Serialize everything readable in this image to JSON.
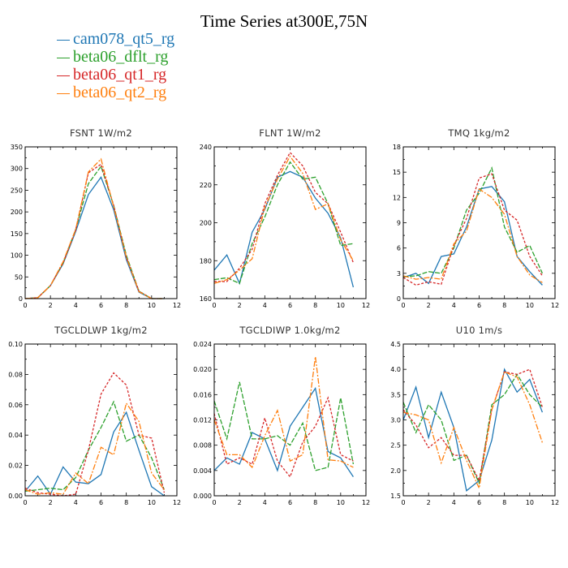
{
  "title": "Time Series at300E,75N",
  "colors": {
    "cam078_qt5_rg": "#1f77b4",
    "beta06_dflt_rg": "#2ca02c",
    "beta06_qt1_rg": "#d62728",
    "beta06_qt2_rg": "#ff7f0e"
  },
  "legend": [
    {
      "label": "cam078_qt5_rg",
      "color": "#1f77b4"
    },
    {
      "label": "beta06_dflt_rg",
      "color": "#2ca02c"
    },
    {
      "label": "beta06_qt1_rg",
      "color": "#d62728"
    },
    {
      "label": "beta06_qt2_rg",
      "color": "#ff7f0e"
    }
  ],
  "chart_data": [
    {
      "type": "line",
      "title": "FSNT   1W/m2",
      "x": [
        0,
        1,
        2,
        3,
        4,
        5,
        6,
        7,
        8,
        9,
        10,
        11
      ],
      "xlim": [
        0,
        12
      ],
      "xticks": [
        "0",
        "2",
        "4",
        "6",
        "8",
        "10",
        "12"
      ],
      "ylim": [
        0,
        350
      ],
      "yticks": [
        "0",
        "50",
        "100",
        "150",
        "200",
        "250",
        "300",
        "350"
      ],
      "series": [
        {
          "name": "cam078_qt5_rg",
          "values": [
            0,
            2,
            30,
            80,
            155,
            240,
            280,
            205,
            90,
            15,
            0,
            0
          ]
        },
        {
          "name": "beta06_dflt_rg",
          "values": [
            0,
            2,
            30,
            82,
            160,
            265,
            305,
            215,
            100,
            17,
            0,
            0
          ]
        },
        {
          "name": "beta06_qt1_rg",
          "values": [
            0,
            2,
            30,
            82,
            158,
            290,
            310,
            215,
            95,
            17,
            0,
            0
          ]
        },
        {
          "name": "beta06_qt2_rg",
          "values": [
            0,
            2,
            30,
            85,
            160,
            292,
            322,
            212,
            96,
            16,
            0,
            0
          ]
        }
      ]
    },
    {
      "type": "line",
      "title": "FLNT   1W/m2",
      "x": [
        0,
        1,
        2,
        3,
        4,
        5,
        6,
        7,
        8,
        9,
        10,
        11
      ],
      "xlim": [
        0,
        12
      ],
      "xticks": [
        "0",
        "2",
        "4",
        "6",
        "8",
        "10",
        "12"
      ],
      "ylim": [
        160,
        240
      ],
      "yticks": [
        "160",
        "180",
        "200",
        "220",
        "240"
      ],
      "series": [
        {
          "name": "cam078_qt5_rg",
          "values": [
            175,
            183,
            168,
            195,
            207,
            224,
            227,
            224,
            213,
            205,
            192,
            166
          ]
        },
        {
          "name": "beta06_dflt_rg",
          "values": [
            170,
            171,
            168,
            189,
            203,
            220,
            232,
            223,
            224,
            210,
            188,
            189
          ]
        },
        {
          "name": "beta06_qt1_rg",
          "values": [
            169,
            169,
            176,
            186,
            210,
            225,
            237,
            230,
            216,
            210,
            195,
            179
          ]
        },
        {
          "name": "beta06_qt2_rg",
          "values": [
            168,
            170,
            175,
            181,
            208,
            223,
            235,
            226,
            207,
            210,
            191,
            180
          ]
        }
      ]
    },
    {
      "type": "line",
      "title": "TMQ   1kg/m2",
      "x": [
        0,
        1,
        2,
        3,
        4,
        5,
        6,
        7,
        8,
        9,
        10,
        11
      ],
      "xlim": [
        0,
        12
      ],
      "xticks": [
        "0",
        "2",
        "4",
        "6",
        "8",
        "10",
        "12"
      ],
      "ylim": [
        0,
        18
      ],
      "yticks": [
        "0",
        "3",
        "6",
        "9",
        "12",
        "15",
        "18"
      ],
      "series": [
        {
          "name": "cam078_qt5_rg",
          "values": [
            2.5,
            3.0,
            1.8,
            5.0,
            5.3,
            8.5,
            13.0,
            13.3,
            11.5,
            5.0,
            3.2,
            1.6
          ]
        },
        {
          "name": "beta06_dflt_rg",
          "values": [
            2.6,
            2.7,
            3.2,
            3.0,
            6.0,
            10.5,
            12.5,
            15.5,
            8.5,
            5.5,
            6.3,
            3.0
          ]
        },
        {
          "name": "beta06_qt1_rg",
          "values": [
            2.5,
            1.6,
            2.0,
            1.7,
            6.3,
            9.5,
            14.3,
            14.8,
            10.5,
            9.3,
            5.0,
            2.7
          ]
        },
        {
          "name": "beta06_qt2_rg",
          "values": [
            2.7,
            2.3,
            2.5,
            2.3,
            6.5,
            8.0,
            13.0,
            12.0,
            10.0,
            5.0,
            2.8,
            1.9
          ]
        }
      ]
    },
    {
      "type": "line",
      "title": "TGCLDLWP   1kg/m2",
      "x": [
        0,
        1,
        2,
        3,
        4,
        5,
        6,
        7,
        8,
        9,
        10,
        11
      ],
      "xlim": [
        0,
        12
      ],
      "xticks": [
        "0",
        "2",
        "4",
        "6",
        "8",
        "10",
        "12"
      ],
      "ylim": [
        0,
        0.1
      ],
      "yticks": [
        "0.00",
        "0.02",
        "0.04",
        "0.06",
        "0.08",
        "0.10"
      ],
      "series": [
        {
          "name": "cam078_qt5_rg",
          "values": [
            0.003,
            0.013,
            0.001,
            0.019,
            0.009,
            0.008,
            0.014,
            0.042,
            0.055,
            0.03,
            0.006,
            0.0
          ]
        },
        {
          "name": "beta06_dflt_rg",
          "values": [
            0.003,
            0.004,
            0.005,
            0.004,
            0.012,
            0.03,
            0.045,
            0.062,
            0.036,
            0.04,
            0.025,
            0.004
          ]
        },
        {
          "name": "beta06_qt1_rg",
          "values": [
            0.005,
            0.002,
            0.001,
            0.0,
            0.001,
            0.03,
            0.067,
            0.081,
            0.073,
            0.04,
            0.038,
            0.002
          ]
        },
        {
          "name": "beta06_qt2_rg",
          "values": [
            0.004,
            0.001,
            0.002,
            0.001,
            0.015,
            0.008,
            0.032,
            0.027,
            0.061,
            0.049,
            0.015,
            0.004
          ]
        }
      ]
    },
    {
      "type": "line",
      "title": "TGCLDIWP   1.0kg/m2",
      "x": [
        0,
        1,
        2,
        3,
        4,
        5,
        6,
        7,
        8,
        9,
        10,
        11
      ],
      "xlim": [
        0,
        12
      ],
      "xticks": [
        "0",
        "2",
        "4",
        "6",
        "8",
        "10",
        "12"
      ],
      "ylim": [
        0,
        0.024
      ],
      "yticks": [
        "0.000",
        "0.004",
        "0.008",
        "0.012",
        "0.016",
        "0.020",
        "0.024"
      ],
      "series": [
        {
          "name": "cam078_qt5_rg",
          "values": [
            0.004,
            0.006,
            0.005,
            0.01,
            0.009,
            0.004,
            0.011,
            0.014,
            0.017,
            0.007,
            0.006,
            0.003
          ]
        },
        {
          "name": "beta06_dflt_rg",
          "values": [
            0.015,
            0.009,
            0.018,
            0.009,
            0.009,
            0.0095,
            0.008,
            0.0115,
            0.004,
            0.0045,
            0.0155,
            0.005
          ]
        },
        {
          "name": "beta06_qt1_rg",
          "values": [
            0.013,
            0.005,
            0.006,
            0.005,
            0.0123,
            0.0055,
            0.003,
            0.0085,
            0.011,
            0.0155,
            0.0065,
            0.0055
          ]
        },
        {
          "name": "beta06_qt2_rg",
          "values": [
            0.012,
            0.0065,
            0.0065,
            0.0045,
            0.0095,
            0.0135,
            0.0055,
            0.0065,
            0.022,
            0.0057,
            0.0055,
            0.0045
          ]
        }
      ]
    },
    {
      "type": "line",
      "title": "U10   1m/s",
      "x": [
        0,
        1,
        2,
        3,
        4,
        5,
        6,
        7,
        8,
        9,
        10,
        11
      ],
      "xlim": [
        0,
        12
      ],
      "xticks": [
        "0",
        "2",
        "4",
        "6",
        "8",
        "10",
        "12"
      ],
      "ylim": [
        1.5,
        4.5
      ],
      "yticks": [
        "1.5",
        "2.0",
        "2.5",
        "3.0",
        "3.5",
        "4.0",
        "4.5"
      ],
      "series": [
        {
          "name": "cam078_qt5_rg",
          "values": [
            3.0,
            3.65,
            2.65,
            3.55,
            2.85,
            1.6,
            1.8,
            2.6,
            4.0,
            3.55,
            3.8,
            3.15
          ]
        },
        {
          "name": "beta06_dflt_rg",
          "values": [
            3.35,
            2.75,
            3.3,
            3.0,
            2.2,
            2.3,
            1.75,
            3.3,
            3.5,
            3.9,
            3.5,
            3.25
          ]
        },
        {
          "name": "beta06_qt1_rg",
          "values": [
            3.2,
            2.9,
            2.45,
            2.65,
            2.3,
            2.3,
            1.8,
            3.2,
            3.95,
            3.9,
            4.0,
            3.25
          ]
        },
        {
          "name": "beta06_qt2_rg",
          "values": [
            3.15,
            3.1,
            3.0,
            2.15,
            2.85,
            2.2,
            1.65,
            3.2,
            3.95,
            3.85,
            3.3,
            2.55
          ]
        }
      ]
    }
  ]
}
